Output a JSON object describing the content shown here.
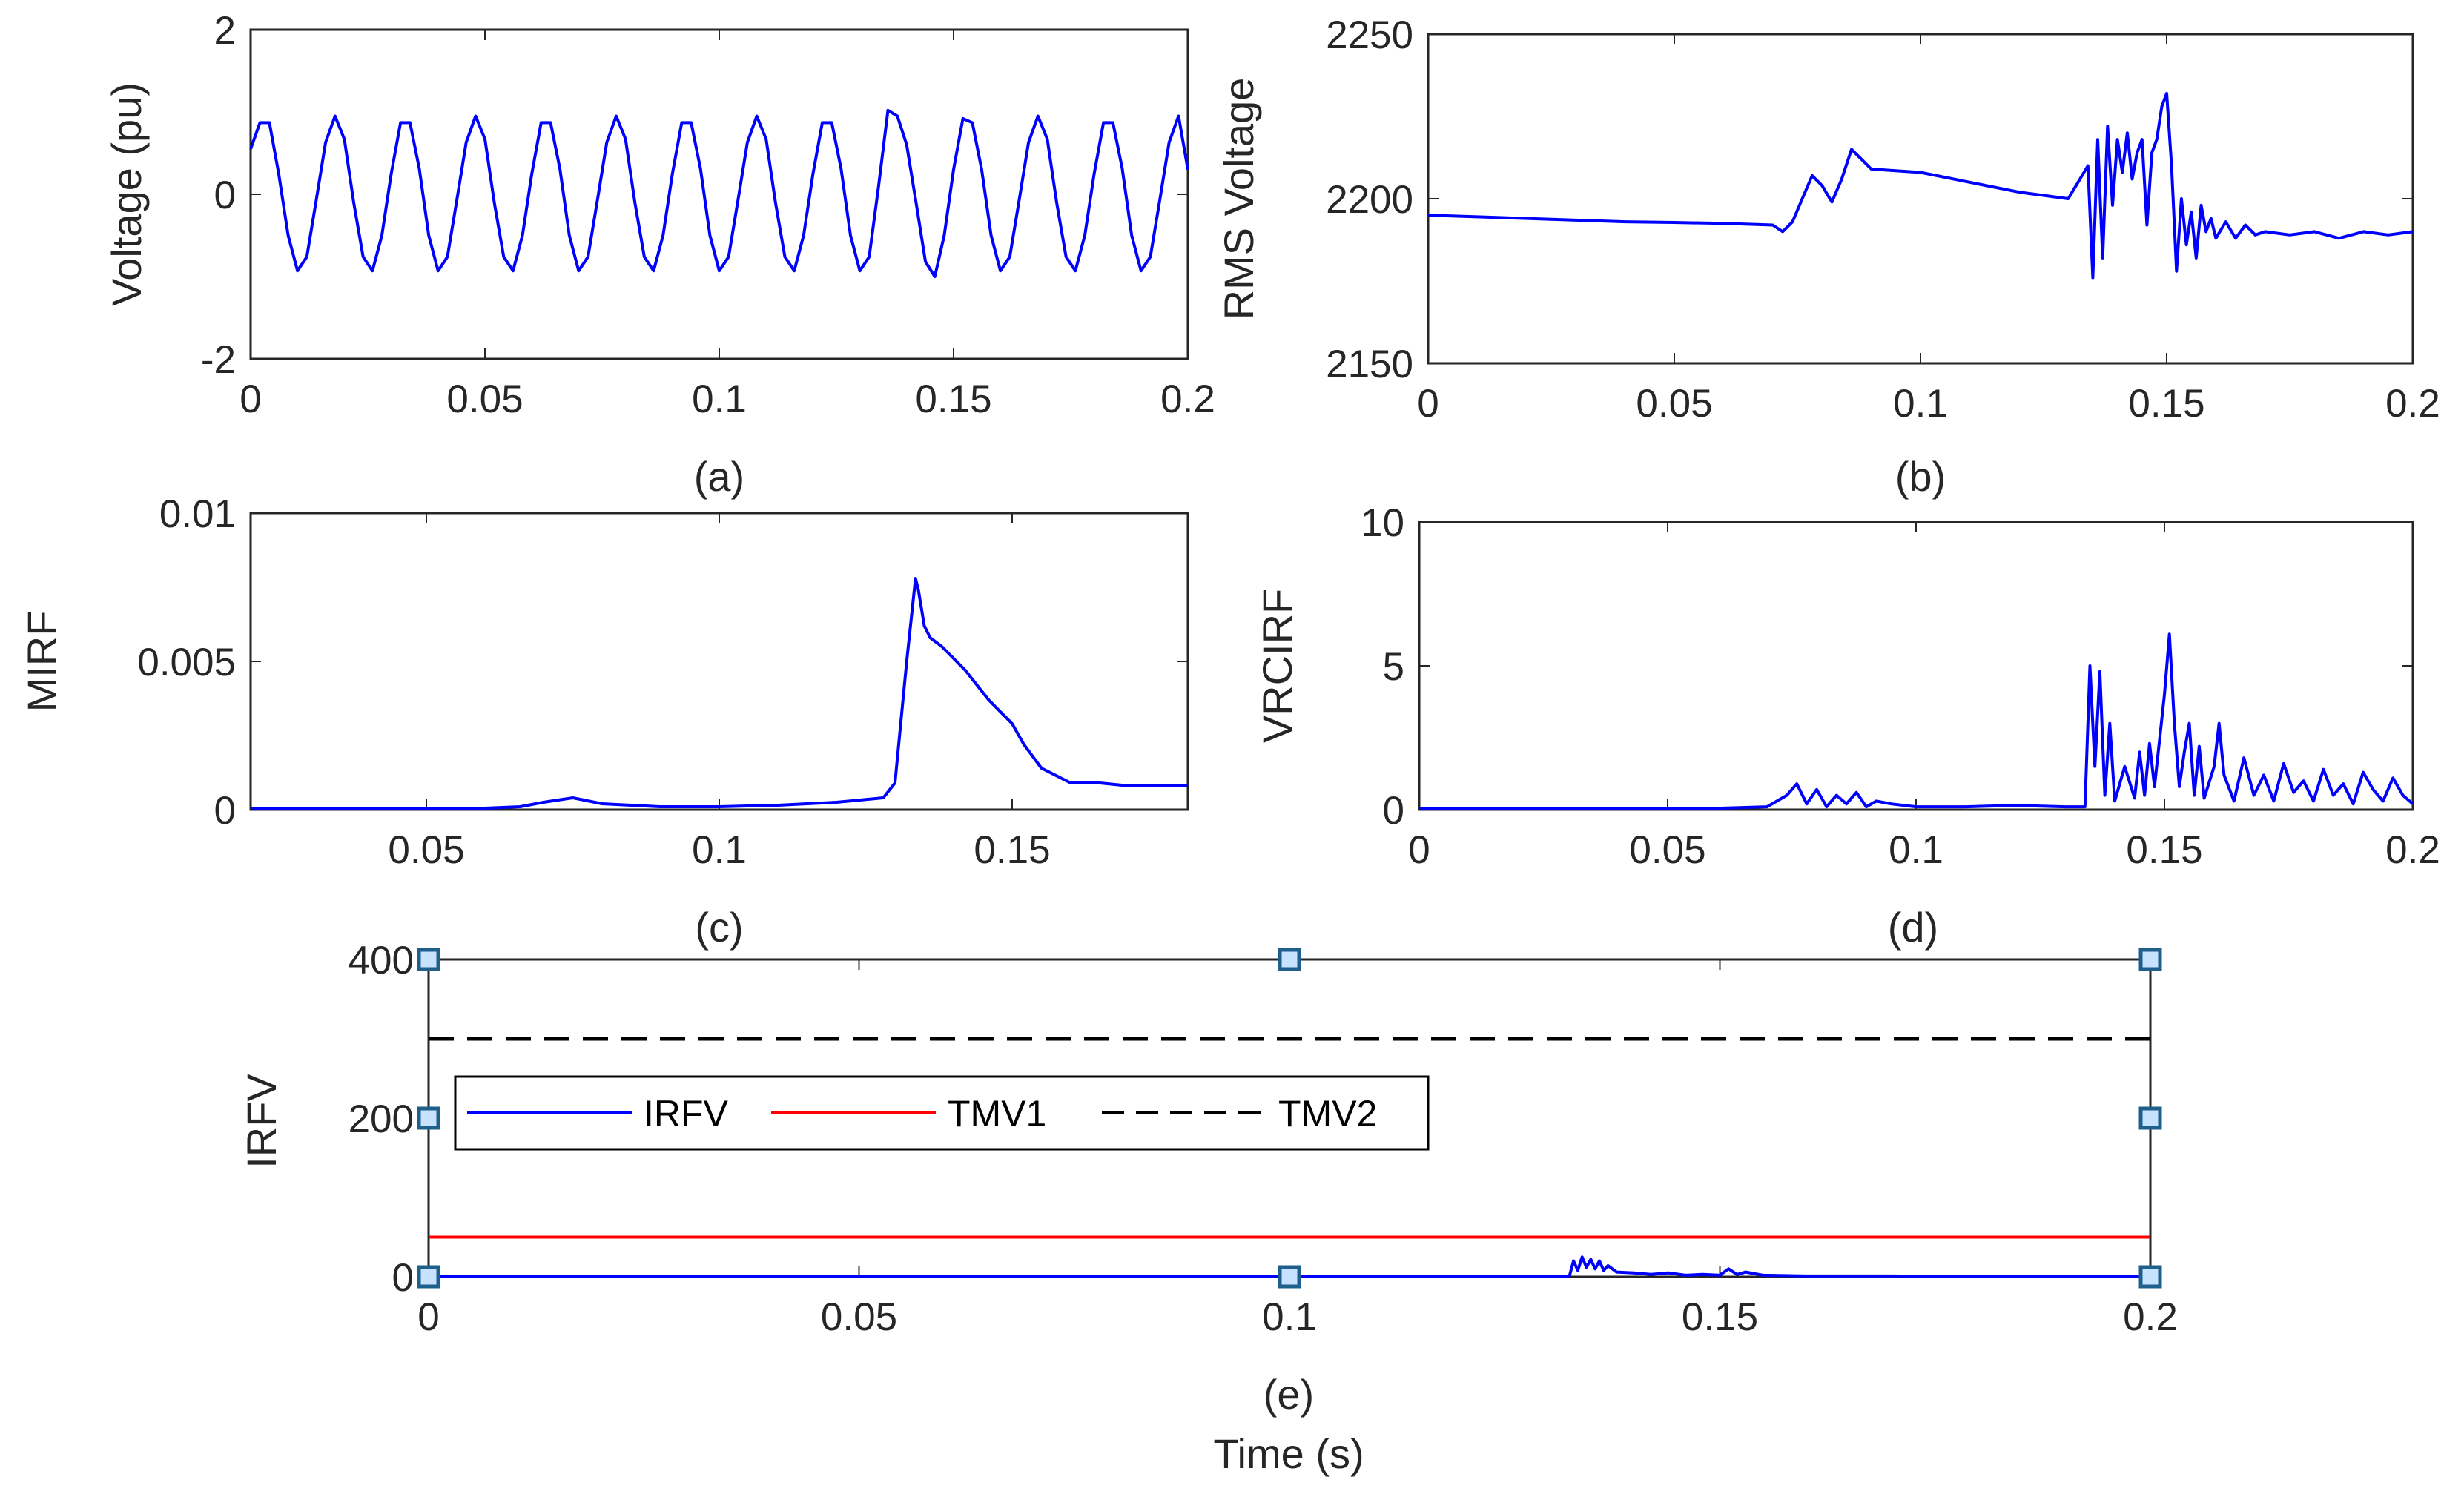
{
  "colors": {
    "signal": "#0000ff",
    "tmv1": "#ff0000",
    "tmv2": "#000000",
    "axis": "#262626",
    "marker_fill": "#c6e2ff",
    "marker_edge": "#1f5f8b"
  },
  "chart_data": [
    {
      "id": "a",
      "type": "line",
      "caption": "(a)",
      "ylabel": "Voltage (pu)",
      "xlabel": "",
      "xlim": [
        0,
        0.2
      ],
      "ylim": [
        -2,
        2
      ],
      "xticks": [
        0,
        0.05,
        0.1,
        0.15,
        0.2
      ],
      "xtick_labels": [
        "0",
        "0.05",
        "0.1",
        "0.15",
        "0.2"
      ],
      "yticks": [
        -2,
        0,
        2
      ],
      "ytick_labels": [
        "-2",
        "0",
        "2"
      ],
      "grid": false,
      "series": [
        {
          "name": "Voltage",
          "color": "#0000ff",
          "x": [
            0,
            0.002,
            0.004,
            0.006,
            0.008,
            0.01,
            0.012,
            0.014,
            0.016,
            0.018,
            0.02,
            0.022,
            0.024,
            0.026,
            0.028,
            0.03,
            0.032,
            0.034,
            0.036,
            0.038,
            0.04,
            0.042,
            0.044,
            0.046,
            0.048,
            0.05,
            0.052,
            0.054,
            0.056,
            0.058,
            0.06,
            0.062,
            0.064,
            0.066,
            0.068,
            0.07,
            0.072,
            0.074,
            0.076,
            0.078,
            0.08,
            0.082,
            0.084,
            0.086,
            0.088,
            0.09,
            0.092,
            0.094,
            0.096,
            0.098,
            0.1,
            0.102,
            0.104,
            0.106,
            0.108,
            0.11,
            0.112,
            0.114,
            0.116,
            0.118,
            0.12,
            0.122,
            0.124,
            0.126,
            0.128,
            0.13,
            0.132,
            0.134,
            0.136,
            0.138,
            0.14,
            0.142,
            0.144,
            0.146,
            0.148,
            0.15,
            0.152,
            0.154,
            0.156,
            0.158,
            0.16,
            0.162,
            0.164,
            0.166,
            0.168,
            0.17,
            0.172,
            0.174,
            0.176,
            0.178,
            0.18,
            0.182,
            0.184,
            0.186,
            0.188,
            0.19,
            0.192,
            0.194,
            0.196,
            0.198,
            0.2
          ],
          "y": [
            0.55,
            0.87,
            0.87,
            0.25,
            -0.5,
            -0.93,
            -0.76,
            -0.07,
            0.63,
            0.95,
            0.67,
            -0.1,
            -0.76,
            -0.93,
            -0.5,
            0.25,
            0.87,
            0.87,
            0.31,
            -0.5,
            -0.93,
            -0.76,
            -0.07,
            0.63,
            0.95,
            0.67,
            -0.1,
            -0.76,
            -0.93,
            -0.5,
            0.25,
            0.87,
            0.87,
            0.31,
            -0.5,
            -0.93,
            -0.76,
            -0.07,
            0.63,
            0.95,
            0.67,
            -0.1,
            -0.76,
            -0.93,
            -0.5,
            0.25,
            0.87,
            0.87,
            0.31,
            -0.5,
            -0.93,
            -0.76,
            -0.07,
            0.63,
            0.95,
            0.67,
            -0.1,
            -0.76,
            -0.93,
            -0.5,
            0.25,
            0.87,
            0.87,
            0.31,
            -0.5,
            -0.93,
            -0.76,
            0.1,
            1.02,
            0.95,
            0.6,
            -0.1,
            -0.82,
            -1.0,
            -0.5,
            0.3,
            0.92,
            0.87,
            0.3,
            -0.5,
            -0.93,
            -0.76,
            -0.07,
            0.63,
            0.95,
            0.67,
            -0.1,
            -0.76,
            -0.93,
            -0.5,
            0.25,
            0.87,
            0.87,
            0.31,
            -0.5,
            -0.93,
            -0.76,
            -0.07,
            0.63,
            0.95,
            0.3
          ]
        }
      ]
    },
    {
      "id": "b",
      "type": "line",
      "caption": "(b)",
      "ylabel": "RMS Voltage",
      "xlabel": "",
      "xlim": [
        0,
        0.2
      ],
      "ylim": [
        2150,
        2250
      ],
      "xticks": [
        0,
        0.05,
        0.1,
        0.15,
        0.2
      ],
      "xtick_labels": [
        "0",
        "0.05",
        "0.1",
        "0.15",
        "0.2"
      ],
      "yticks": [
        2150,
        2200,
        2250
      ],
      "ytick_labels": [
        "2150",
        "2200",
        "2250"
      ],
      "grid": false,
      "series": [
        {
          "name": "RMS Voltage",
          "color": "#0000ff",
          "x": [
            0,
            0.01,
            0.02,
            0.03,
            0.04,
            0.05,
            0.06,
            0.07,
            0.072,
            0.074,
            0.076,
            0.078,
            0.08,
            0.082,
            0.084,
            0.086,
            0.088,
            0.09,
            0.1,
            0.11,
            0.12,
            0.13,
            0.134,
            0.135,
            0.136,
            0.137,
            0.138,
            0.139,
            0.14,
            0.141,
            0.142,
            0.143,
            0.144,
            0.145,
            0.146,
            0.147,
            0.148,
            0.149,
            0.15,
            0.151,
            0.152,
            0.153,
            0.154,
            0.155,
            0.156,
            0.157,
            0.158,
            0.159,
            0.16,
            0.162,
            0.164,
            0.166,
            0.168,
            0.17,
            0.175,
            0.18,
            0.185,
            0.19,
            0.195,
            0.2
          ],
          "y": [
            2195,
            2194.5,
            2194,
            2193.5,
            2193,
            2192.8,
            2192.5,
            2192,
            2190,
            2193,
            2200,
            2207,
            2204,
            2199,
            2206,
            2215,
            2212,
            2209,
            2208,
            2205,
            2202,
            2200,
            2210,
            2176,
            2218,
            2182,
            2222,
            2198,
            2218,
            2208,
            2220,
            2206,
            2214,
            2218,
            2192,
            2214,
            2218,
            2228,
            2232,
            2210,
            2178,
            2200,
            2186,
            2196,
            2182,
            2198,
            2190,
            2194,
            2188,
            2193,
            2188,
            2192,
            2189,
            2190,
            2189,
            2190,
            2188,
            2190,
            2189,
            2190
          ]
        }
      ]
    },
    {
      "id": "c",
      "type": "line",
      "caption": "(c)",
      "ylabel": "MIRF",
      "xlabel": "",
      "xlim": [
        0.02,
        0.18
      ],
      "ylim": [
        0,
        0.01
      ],
      "xticks": [
        0.05,
        0.1,
        0.15
      ],
      "xtick_labels": [
        "0.05",
        "0.1",
        "0.15"
      ],
      "yticks": [
        0,
        0.005,
        0.01
      ],
      "ytick_labels": [
        "0",
        "0.005",
        "0.01"
      ],
      "grid": false,
      "series": [
        {
          "name": "MIRF",
          "color": "#0000ff",
          "x": [
            0.02,
            0.04,
            0.06,
            0.066,
            0.07,
            0.075,
            0.08,
            0.09,
            0.1,
            0.11,
            0.12,
            0.128,
            0.13,
            0.132,
            0.1335,
            0.134,
            0.135,
            0.136,
            0.138,
            0.14,
            0.142,
            0.144,
            0.146,
            0.148,
            0.15,
            0.152,
            0.155,
            0.16,
            0.165,
            0.17,
            0.175,
            0.18
          ],
          "y": [
            5e-05,
            5e-05,
            5e-05,
            0.0001,
            0.00025,
            0.0004,
            0.0002,
            0.0001,
            0.0001,
            0.00015,
            0.00025,
            0.0004,
            0.0009,
            0.005,
            0.0078,
            0.0074,
            0.0062,
            0.0058,
            0.0055,
            0.0051,
            0.0047,
            0.0042,
            0.0037,
            0.0033,
            0.0029,
            0.0022,
            0.0014,
            0.0009,
            0.0009,
            0.0008,
            0.0008,
            0.0008
          ]
        }
      ]
    },
    {
      "id": "d",
      "type": "line",
      "caption": "(d)",
      "ylabel": "VRCIRF",
      "xlabel": "",
      "xlim": [
        0,
        0.2
      ],
      "ylim": [
        0,
        10
      ],
      "xticks": [
        0,
        0.05,
        0.1,
        0.15,
        0.2
      ],
      "xtick_labels": [
        "0",
        "0.05",
        "0.1",
        "0.15",
        "0.2"
      ],
      "yticks": [
        0,
        5,
        10
      ],
      "ytick_labels": [
        "0",
        "5",
        "10"
      ],
      "grid": false,
      "series": [
        {
          "name": "VRCIRF",
          "color": "#0000ff",
          "x": [
            0,
            0.02,
            0.04,
            0.06,
            0.07,
            0.074,
            0.076,
            0.078,
            0.08,
            0.082,
            0.084,
            0.086,
            0.088,
            0.09,
            0.092,
            0.095,
            0.1,
            0.11,
            0.12,
            0.13,
            0.134,
            0.135,
            0.136,
            0.137,
            0.138,
            0.139,
            0.14,
            0.142,
            0.144,
            0.145,
            0.146,
            0.147,
            0.148,
            0.15,
            0.151,
            0.152,
            0.153,
            0.154,
            0.155,
            0.156,
            0.157,
            0.158,
            0.16,
            0.161,
            0.162,
            0.164,
            0.166,
            0.168,
            0.17,
            0.172,
            0.174,
            0.176,
            0.178,
            0.18,
            0.182,
            0.184,
            0.186,
            0.188,
            0.19,
            0.192,
            0.194,
            0.196,
            0.198,
            0.2
          ],
          "y": [
            0.05,
            0.05,
            0.05,
            0.05,
            0.1,
            0.5,
            0.9,
            0.2,
            0.7,
            0.1,
            0.5,
            0.2,
            0.6,
            0.1,
            0.3,
            0.2,
            0.1,
            0.1,
            0.15,
            0.1,
            0.1,
            5.0,
            1.5,
            4.8,
            0.5,
            3.0,
            0.3,
            1.5,
            0.4,
            2.0,
            0.5,
            2.3,
            0.8,
            4.0,
            6.1,
            3.0,
            0.8,
            2.0,
            3.0,
            0.5,
            2.2,
            0.4,
            1.5,
            3.0,
            1.2,
            0.3,
            1.8,
            0.5,
            1.2,
            0.3,
            1.6,
            0.6,
            1.0,
            0.3,
            1.4,
            0.5,
            0.9,
            0.2,
            1.3,
            0.7,
            0.3,
            1.1,
            0.5,
            0.2
          ]
        }
      ]
    },
    {
      "id": "e",
      "type": "line",
      "caption": "(e)",
      "ylabel": "IRFV",
      "xlabel": "Time (s)",
      "xlim": [
        0,
        0.2
      ],
      "ylim": [
        0,
        400
      ],
      "xticks": [
        0,
        0.05,
        0.1,
        0.15,
        0.2
      ],
      "xtick_labels": [
        "0",
        "0.05",
        "0.1",
        "0.15",
        "0.2"
      ],
      "yticks": [
        0,
        200,
        400
      ],
      "ytick_labels": [
        "0",
        "200",
        "400"
      ],
      "grid": false,
      "legend": [
        "IRFV",
        "TMV1",
        "TMV2"
      ],
      "series": [
        {
          "name": "IRFV",
          "color": "#0000ff",
          "x": [
            0,
            0.05,
            0.1,
            0.13,
            0.1325,
            0.133,
            0.1335,
            0.134,
            0.1345,
            0.135,
            0.1355,
            0.136,
            0.1365,
            0.137,
            0.138,
            0.14,
            0.142,
            0.144,
            0.146,
            0.148,
            0.15,
            0.151,
            0.152,
            0.153,
            0.155,
            0.16,
            0.17,
            0.18,
            0.19,
            0.2
          ],
          "y": [
            0,
            0,
            0,
            0,
            0,
            20,
            8,
            25,
            12,
            22,
            10,
            20,
            8,
            14,
            6,
            5,
            3,
            5,
            2,
            3,
            2,
            10,
            3,
            6,
            2,
            1,
            1,
            0,
            0,
            0
          ]
        },
        {
          "name": "TMV1",
          "color": "#ff0000",
          "x": [
            0,
            0.2
          ],
          "y": [
            50,
            50
          ]
        },
        {
          "name": "TMV2",
          "color": "#000000",
          "style": "dashed",
          "x": [
            0,
            0.2
          ],
          "y": [
            300,
            300
          ]
        }
      ]
    }
  ]
}
